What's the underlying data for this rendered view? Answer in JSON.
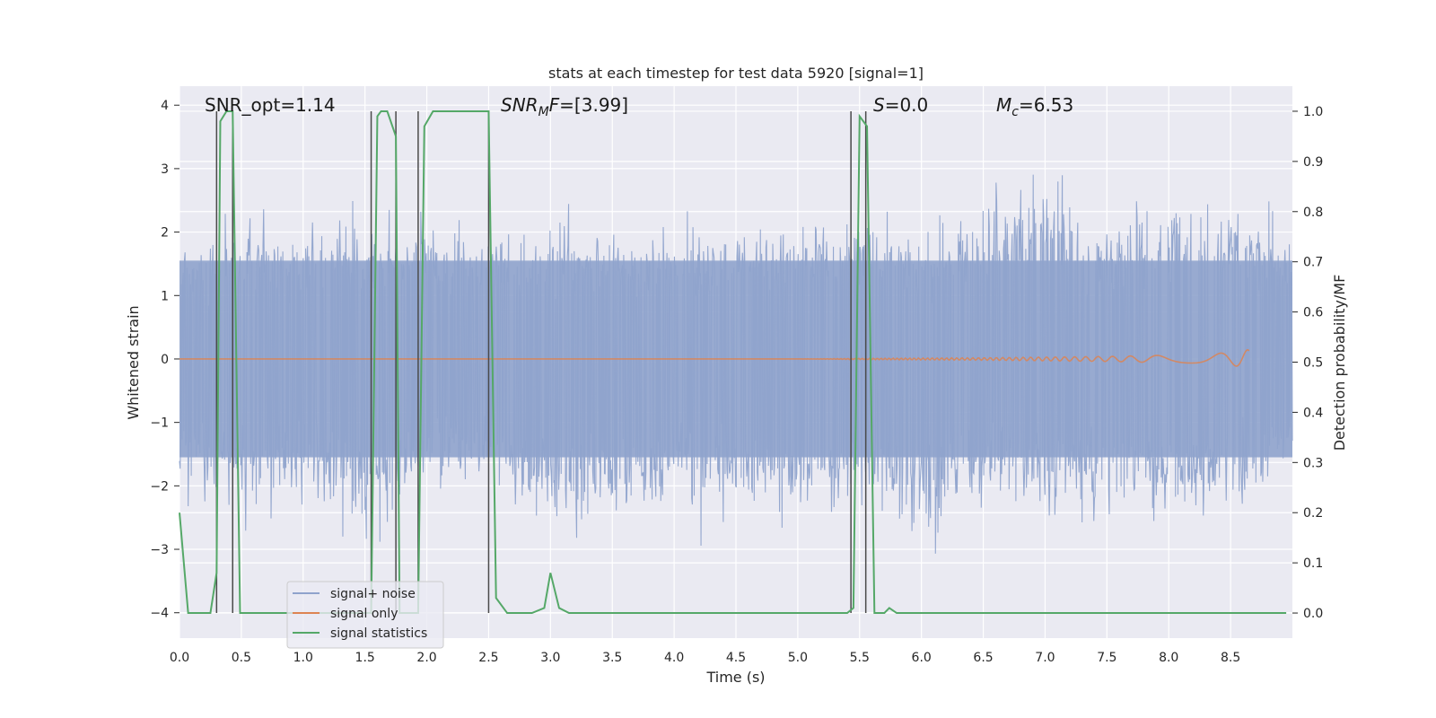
{
  "chart_data": {
    "type": "line",
    "title": "stats at each timestep for test data 5920 [signal=1]",
    "xlabel": "Time (s)",
    "ylabel": "Whitened strain",
    "y2label": "Detection probability/MF",
    "xlim": [
      0.0,
      9.0
    ],
    "ylim": [
      -4.4,
      4.3
    ],
    "y2lim": [
      -0.05,
      1.05
    ],
    "xticks": [
      0.0,
      0.5,
      1.0,
      1.5,
      2.0,
      2.5,
      3.0,
      3.5,
      4.0,
      4.5,
      5.0,
      5.5,
      6.0,
      6.5,
      7.0,
      7.5,
      8.0,
      8.5
    ],
    "xtick_labels": [
      "0.0",
      "0.5",
      "1.0",
      "1.5",
      "2.0",
      "2.5",
      "3.0",
      "3.5",
      "4.0",
      "4.5",
      "5.0",
      "5.5",
      "6.0",
      "6.5",
      "7.0",
      "7.5",
      "8.0",
      "8.5"
    ],
    "yticks": [
      4,
      3,
      2,
      1,
      0,
      -1,
      -2,
      -3,
      -4
    ],
    "ytick_labels": [
      "4",
      "3",
      "2",
      "1",
      "0",
      "−1",
      "−2",
      "−3",
      "−4"
    ],
    "y2ticks": [
      1.0,
      0.9,
      0.8,
      0.7,
      0.6,
      0.5,
      0.4,
      0.3,
      0.2,
      0.1,
      0.0
    ],
    "y2tick_labels": [
      "1.0",
      "0.9",
      "0.8",
      "0.7",
      "0.6",
      "0.5",
      "0.4",
      "0.3",
      "0.2",
      "0.1",
      "0.0"
    ],
    "grid": true,
    "legend_position": "lower-left",
    "annotations": {
      "snr_opt": "SNR_opt=1.14",
      "snr_mf_main": "SNR",
      "snr_mf_sub": "M",
      "snr_mf_rest": "F=[3.99]",
      "s_main": "S",
      "s_rest": "=0.0",
      "mc_main": "M",
      "mc_sub": "c",
      "mc_rest": "=6.53"
    },
    "series": [
      {
        "name": "signal+ noise",
        "color": "#8fa3cc",
        "description_only": "dense whitened strain noise, approx ±2 band with peaks to about ±3.7",
        "envelope": {
          "t": [
            0.0,
            0.5,
            1.0,
            1.5,
            2.0,
            2.5,
            3.0,
            3.5,
            4.0,
            4.5,
            5.0,
            5.5,
            6.0,
            6.5,
            7.0,
            7.5,
            8.0,
            8.5,
            9.0
          ],
          "upper": [
            2.3,
            2.9,
            2.7,
            2.6,
            2.9,
            2.4,
            2.7,
            2.6,
            2.6,
            2.8,
            2.7,
            2.7,
            2.5,
            3.1,
            3.7,
            2.7,
            3.1,
            3.2,
            2.4
          ],
          "lower": [
            -2.6,
            -3.0,
            -2.7,
            -3.6,
            -2.6,
            -2.6,
            -3.3,
            -3.4,
            -3.0,
            -3.1,
            -3.2,
            -2.7,
            -3.6,
            -2.9,
            -3.0,
            -3.0,
            -3.1,
            -3.3,
            -2.2
          ]
        }
      },
      {
        "name": "signal only",
        "color": "#dd8452",
        "x": [
          0.0,
          5.0,
          5.5,
          6.0,
          6.5,
          7.0,
          7.5,
          8.0,
          8.3,
          8.5,
          8.6,
          8.65
        ],
        "amplitude": [
          0.0,
          0.0,
          0.01,
          0.015,
          0.02,
          0.03,
          0.04,
          0.06,
          0.08,
          0.1,
          0.13,
          0.15
        ]
      },
      {
        "name": "signal statistics",
        "color": "#55a868",
        "x": [
          0.0,
          0.07,
          0.25,
          0.3,
          0.33,
          0.38,
          0.43,
          0.49,
          0.55,
          1.55,
          1.6,
          1.63,
          1.68,
          1.75,
          1.78,
          1.93,
          1.98,
          2.05,
          2.5,
          2.56,
          2.65,
          2.85,
          2.95,
          3.0,
          3.07,
          3.15,
          5.4,
          5.45,
          5.5,
          5.56,
          5.62,
          5.7,
          5.74,
          5.8,
          5.9,
          8.95
        ],
        "values": [
          0.2,
          0.0,
          0.0,
          0.08,
          0.98,
          1.0,
          1.0,
          0.0,
          0.0,
          0.0,
          0.99,
          1.0,
          1.0,
          0.95,
          0.0,
          0.0,
          0.97,
          1.0,
          1.0,
          0.03,
          0.0,
          0.0,
          0.01,
          0.08,
          0.01,
          0.0,
          0.0,
          0.01,
          0.99,
          0.97,
          0.0,
          0.0,
          0.01,
          0.0,
          0.0,
          0.0
        ]
      }
    ],
    "vlines": [
      0.3,
      0.43,
      1.55,
      1.75,
      1.93,
      2.5,
      5.43,
      5.55
    ],
    "vline_color": "#4a4a4a"
  }
}
